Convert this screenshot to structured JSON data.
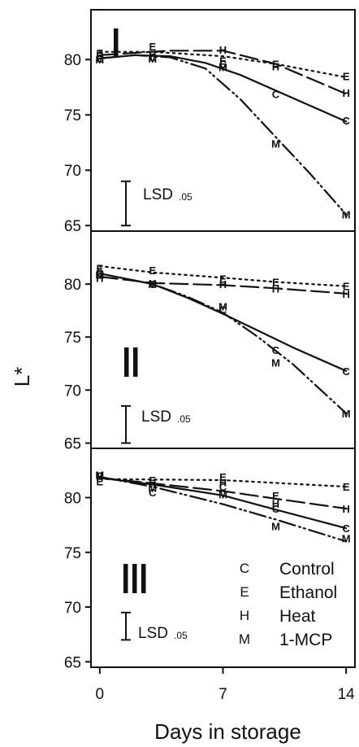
{
  "chart_data": {
    "type": "line",
    "ylabel": "L*",
    "xlabel": "Days in storage",
    "x_ticks": [
      "0",
      "7",
      "14"
    ],
    "x_domain": [
      -0.5,
      14.5
    ],
    "lsd_label": "LSD",
    "lsd_subscript": ".05",
    "legend": [
      {
        "code": "C",
        "name": "Control"
      },
      {
        "code": "E",
        "name": "Ethanol"
      },
      {
        "code": "H",
        "name": "Heat"
      },
      {
        "code": "M",
        "name": "1-MCP"
      }
    ],
    "panels": [
      {
        "label": "I",
        "ylim": [
          64.5,
          84.5
        ],
        "y_ticks": [
          "65",
          "70",
          "75",
          "80"
        ],
        "lsd": [
          65,
          69
        ],
        "series": [
          {
            "code": "C",
            "dash": "solid",
            "points": [
              [
                0,
                80.1
              ],
              [
                3,
                80.2
              ],
              [
                7,
                79.6
              ],
              [
                10,
                76.9
              ],
              [
                14,
                74.5
              ]
            ],
            "curve": [
              [
                0,
                80.1
              ],
              [
                2,
                80.4
              ],
              [
                4,
                80.3
              ],
              [
                6,
                79.7
              ],
              [
                8,
                78.6
              ],
              [
                10,
                77.2
              ],
              [
                12,
                75.8
              ],
              [
                14,
                74.4
              ]
            ]
          },
          {
            "code": "E",
            "dash": "dotted",
            "points": [
              [
                0,
                80.6
              ],
              [
                3,
                81.2
              ],
              [
                7,
                79.9
              ],
              [
                10,
                79.6
              ],
              [
                14,
                78.5
              ]
            ],
            "curve": [
              [
                0,
                80.7
              ],
              [
                3,
                80.7
              ],
              [
                7,
                80.3
              ],
              [
                10,
                79.6
              ],
              [
                14,
                78.4
              ]
            ]
          },
          {
            "code": "H",
            "dash": "longdash",
            "points": [
              [
                0,
                80.4
              ],
              [
                3,
                80.5
              ],
              [
                7,
                80.9
              ],
              [
                10,
                79.4
              ],
              [
                14,
                77.0
              ]
            ],
            "curve": [
              [
                0,
                80.4
              ],
              [
                4,
                80.8
              ],
              [
                7,
                80.8
              ],
              [
                10,
                79.6
              ],
              [
                14,
                76.9
              ]
            ]
          },
          {
            "code": "M",
            "dash": "dashdotdot",
            "points": [
              [
                0,
                80.0
              ],
              [
                3,
                80.1
              ],
              [
                7,
                79.3
              ],
              [
                10,
                72.4
              ],
              [
                14,
                66.0
              ]
            ],
            "curve": [
              [
                0,
                80.1
              ],
              [
                2,
                80.4
              ],
              [
                4,
                80.2
              ],
              [
                6,
                79.2
              ],
              [
                8,
                76.4
              ],
              [
                10,
                73.0
              ],
              [
                12,
                69.6
              ],
              [
                14,
                66.0
              ]
            ]
          }
        ]
      },
      {
        "label": "II",
        "ylim": [
          64.5,
          85
        ],
        "y_ticks": [
          "65",
          "70",
          "75",
          "80"
        ],
        "lsd": [
          65,
          68.5
        ],
        "series": [
          {
            "code": "C",
            "dash": "solid",
            "points": [
              [
                0,
                81.1
              ],
              [
                3,
                80.0
              ],
              [
                7,
                77.6
              ],
              [
                10,
                73.8
              ],
              [
                14,
                71.8
              ]
            ],
            "curve": [
              [
                0,
                81.0
              ],
              [
                3,
                80.0
              ],
              [
                5,
                78.7
              ],
              [
                7,
                77.2
              ],
              [
                9,
                75.6
              ],
              [
                11,
                74.0
              ],
              [
                14,
                71.8
              ]
            ]
          },
          {
            "code": "E",
            "dash": "dotted",
            "points": [
              [
                0,
                81.5
              ],
              [
                3,
                81.3
              ],
              [
                7,
                80.5
              ],
              [
                10,
                80.2
              ],
              [
                14,
                79.8
              ]
            ],
            "curve": [
              [
                0,
                81.7
              ],
              [
                3,
                81.1
              ],
              [
                7,
                80.6
              ],
              [
                10,
                80.2
              ],
              [
                14,
                79.8
              ]
            ]
          },
          {
            "code": "H",
            "dash": "longdash",
            "points": [
              [
                0,
                80.6
              ],
              [
                3,
                80.1
              ],
              [
                7,
                80.0
              ],
              [
                10,
                79.6
              ],
              [
                14,
                79.1
              ]
            ],
            "curve": [
              [
                0,
                80.7
              ],
              [
                3,
                80.1
              ],
              [
                7,
                79.9
              ],
              [
                10,
                79.6
              ],
              [
                14,
                79.1
              ]
            ]
          },
          {
            "code": "M",
            "dash": "dashdotdot",
            "points": [
              [
                0,
                80.9
              ],
              [
                3,
                80.0
              ],
              [
                7,
                77.9
              ],
              [
                10,
                72.6
              ],
              [
                14,
                67.8
              ]
            ],
            "curve": [
              [
                0,
                81.0
              ],
              [
                3,
                80.0
              ],
              [
                5,
                78.8
              ],
              [
                7,
                77.3
              ],
              [
                9,
                75.0
              ],
              [
                11,
                72.4
              ],
              [
                14,
                67.8
              ]
            ]
          }
        ]
      },
      {
        "label": "III",
        "ylim": [
          64.5,
          84.5
        ],
        "y_ticks": [
          "65",
          "70",
          "75",
          "80"
        ],
        "lsd": [
          67,
          69.5
        ],
        "series": [
          {
            "code": "C",
            "dash": "solid",
            "points": [
              [
                0,
                82.0
              ],
              [
                3,
                80.5
              ],
              [
                7,
                81.0
              ],
              [
                10,
                79.0
              ],
              [
                14,
                77.2
              ]
            ],
            "curve": [
              [
                0,
                81.8
              ],
              [
                3,
                81.2
              ],
              [
                7,
                80.2
              ],
              [
                10,
                78.9
              ],
              [
                14,
                77.2
              ]
            ]
          },
          {
            "code": "E",
            "dash": "dotted",
            "points": [
              [
                0,
                81.5
              ],
              [
                3,
                81.6
              ],
              [
                7,
                81.9
              ],
              [
                10,
                80.2
              ],
              [
                14,
                81.0
              ]
            ],
            "curve": [
              [
                0,
                81.7
              ],
              [
                7,
                81.6
              ],
              [
                14,
                81.0
              ]
            ]
          },
          {
            "code": "H",
            "dash": "longdash",
            "points": [
              [
                0,
                81.9
              ],
              [
                3,
                81.4
              ],
              [
                7,
                81.4
              ],
              [
                10,
                79.5
              ],
              [
                14,
                79.0
              ]
            ],
            "curve": [
              [
                0,
                81.8
              ],
              [
                3,
                81.3
              ],
              [
                7,
                80.6
              ],
              [
                10,
                79.9
              ],
              [
                14,
                79.0
              ]
            ]
          },
          {
            "code": "M",
            "dash": "dashdotdot",
            "points": [
              [
                0,
                82.1
              ],
              [
                3,
                80.9
              ],
              [
                7,
                80.3
              ],
              [
                10,
                77.4
              ],
              [
                14,
                76.3
              ]
            ],
            "curve": [
              [
                0,
                81.9
              ],
              [
                3,
                81.0
              ],
              [
                7,
                79.4
              ],
              [
                10,
                78.0
              ],
              [
                14,
                76.0
              ]
            ]
          }
        ]
      }
    ]
  }
}
